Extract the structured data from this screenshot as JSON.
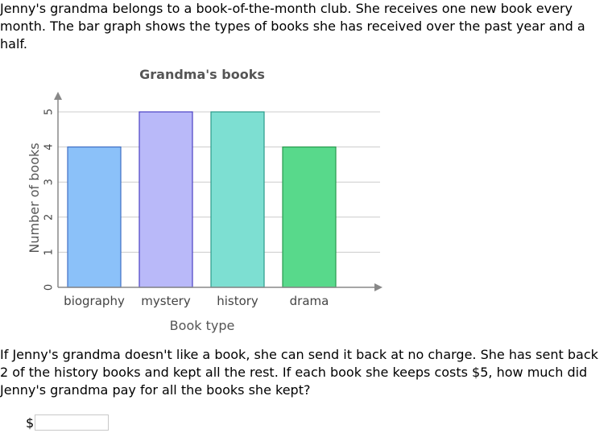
{
  "intro_text": "Jenny's grandma belongs to a book-of-the-month club. She receives one new book every month. The bar graph shows the types of books she has received over the past year and a half.",
  "question_text": "If Jenny's grandma doesn't like a book, she can send it back at no charge. She has sent back 2 of the history books and kept all the rest. If each book she keeps costs $5, how much did Jenny's grandma pay for all the books she kept?",
  "answer": {
    "currency_symbol": "$",
    "value": ""
  },
  "chart_data": {
    "type": "bar",
    "title": "Grandma's books",
    "xlabel": "Book type",
    "ylabel": "Number of books",
    "categories": [
      "biography",
      "mystery",
      "history",
      "drama"
    ],
    "values": [
      4,
      5,
      5,
      4
    ],
    "ylim": [
      0,
      5
    ],
    "yticks": [
      0,
      1,
      2,
      3,
      4,
      5
    ],
    "grid": true,
    "colors": [
      {
        "fill": "#8bc1f9",
        "stroke": "#3f6fc4"
      },
      {
        "fill": "#b9b9f9",
        "stroke": "#4a3fc4"
      },
      {
        "fill": "#7ddfd2",
        "stroke": "#2a9a8a"
      },
      {
        "fill": "#58d98b",
        "stroke": "#2a9a4f"
      }
    ]
  }
}
